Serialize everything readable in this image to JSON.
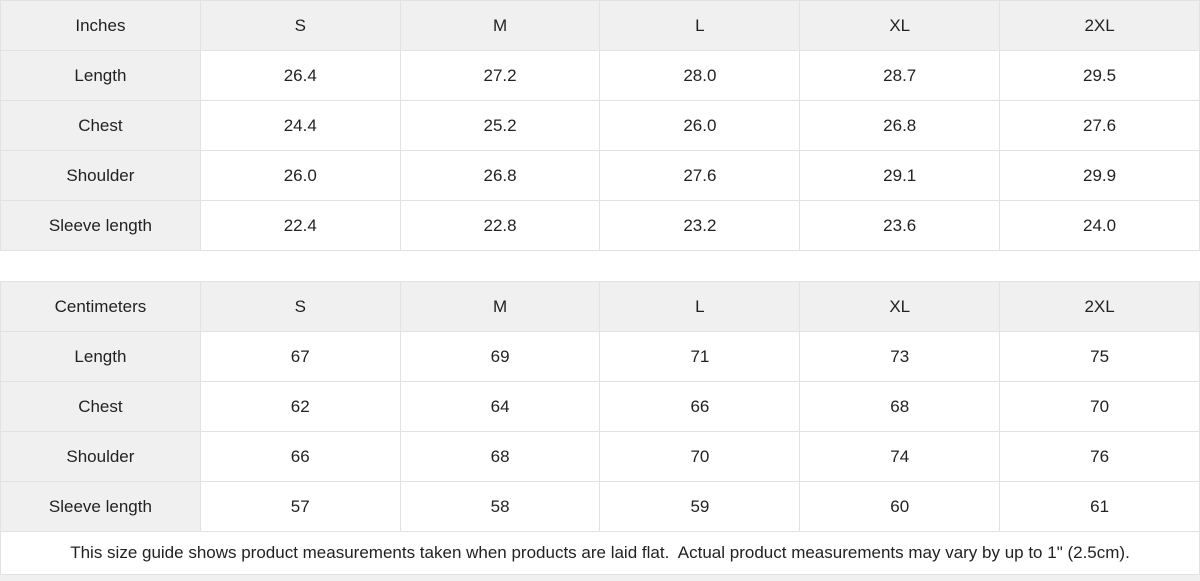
{
  "colors": {
    "header_bg": "#f0f0f0",
    "label_bg": "#f0f0f0",
    "border": "#e2e2e2",
    "text": "#222222",
    "page_bg": "#ffffff",
    "bottom_strip": "#f0f0f0"
  },
  "inches_table": {
    "unit_label": "Inches",
    "size_headers": [
      "S",
      "M",
      "L",
      "XL",
      "2XL"
    ],
    "rows": [
      {
        "label": "Length",
        "values": [
          "26.4",
          "27.2",
          "28.0",
          "28.7",
          "29.5"
        ]
      },
      {
        "label": "Chest",
        "values": [
          "24.4",
          "25.2",
          "26.0",
          "26.8",
          "27.6"
        ]
      },
      {
        "label": "Shoulder",
        "values": [
          "26.0",
          "26.8",
          "27.6",
          "29.1",
          "29.9"
        ]
      },
      {
        "label": "Sleeve length",
        "values": [
          "22.4",
          "22.8",
          "23.2",
          "23.6",
          "24.0"
        ]
      }
    ]
  },
  "centimeters_table": {
    "unit_label": "Centimeters",
    "size_headers": [
      "S",
      "M",
      "L",
      "XL",
      "2XL"
    ],
    "rows": [
      {
        "label": "Length",
        "values": [
          "67",
          "69",
          "71",
          "73",
          "75"
        ]
      },
      {
        "label": "Chest",
        "values": [
          "62",
          "64",
          "66",
          "68",
          "70"
        ]
      },
      {
        "label": "Shoulder",
        "values": [
          "66",
          "68",
          "70",
          "74",
          "76"
        ]
      },
      {
        "label": "Sleeve length",
        "values": [
          "57",
          "58",
          "59",
          "60",
          "61"
        ]
      }
    ]
  },
  "footer": {
    "note": "This size guide shows product measurements taken when products are laid flat.  Actual product measurements may vary by up to 1\" (2.5cm)."
  }
}
